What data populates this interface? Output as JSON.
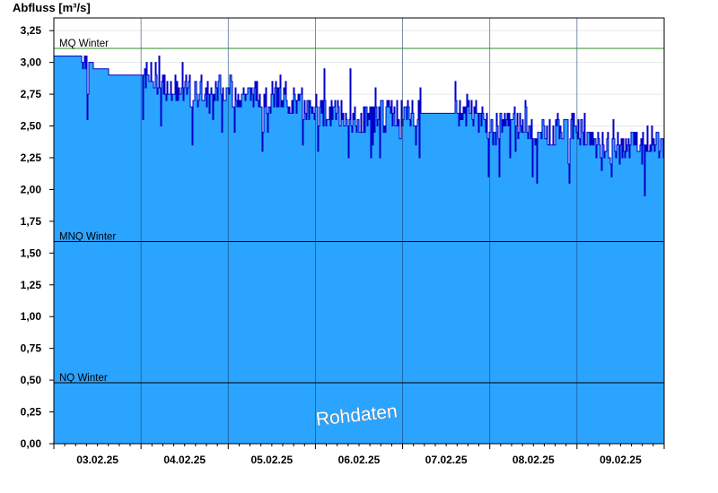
{
  "chart_data": {
    "type": "area",
    "ylabel": "Abfluss [m³/s]",
    "xlabel": "",
    "ylim": [
      0,
      3.35
    ],
    "yticks": [
      "0,00",
      "0,25",
      "0,50",
      "0,75",
      "1,00",
      "1,25",
      "1,50",
      "1,75",
      "2,00",
      "2,25",
      "2,50",
      "2,75",
      "3,00",
      "3,25"
    ],
    "ytick_values": [
      0,
      0.25,
      0.5,
      0.75,
      1.0,
      1.25,
      1.5,
      1.75,
      2.0,
      2.25,
      2.5,
      2.75,
      3.0,
      3.25
    ],
    "xlim_days": [
      0,
      7
    ],
    "xticks": [
      "03.02.25",
      "04.02.25",
      "05.02.25",
      "06.02.25",
      "07.02.25",
      "08.02.25",
      "09.02.25"
    ],
    "grid": "vertical day separators",
    "fill_color": "#2ba4ff",
    "line_color": "#0000c8",
    "reference_lines": [
      {
        "label": "MQ Winter",
        "value": 3.11,
        "color": "#2e8b2e"
      },
      {
        "label": "MNQ Winter",
        "value": 1.59,
        "color": "#000000"
      },
      {
        "label": "NQ Winter",
        "value": 0.48,
        "color": "#000000"
      }
    ],
    "series": [
      {
        "x": [
          0.0,
          0.3,
          0.5,
          0.75,
          1.0,
          1.25,
          1.5,
          1.75,
          2.0,
          2.25,
          2.5,
          2.75,
          3.0,
          3.25,
          3.5,
          3.75,
          4.0,
          4.25,
          4.5,
          4.75,
          5.0,
          5.25,
          5.5,
          5.75,
          6.0,
          6.25,
          6.5,
          6.75,
          7.0
        ],
        "y": [
          3.05,
          3.05,
          2.95,
          2.9,
          2.9,
          2.85,
          2.72,
          2.8,
          2.78,
          2.75,
          2.72,
          2.7,
          2.62,
          2.6,
          2.55,
          2.58,
          2.6,
          2.6,
          2.6,
          2.62,
          2.5,
          2.55,
          2.45,
          2.45,
          2.5,
          2.35,
          2.3,
          2.4,
          2.38
        ],
        "noise": 0.12
      }
    ],
    "annotation": "Rohdaten"
  }
}
